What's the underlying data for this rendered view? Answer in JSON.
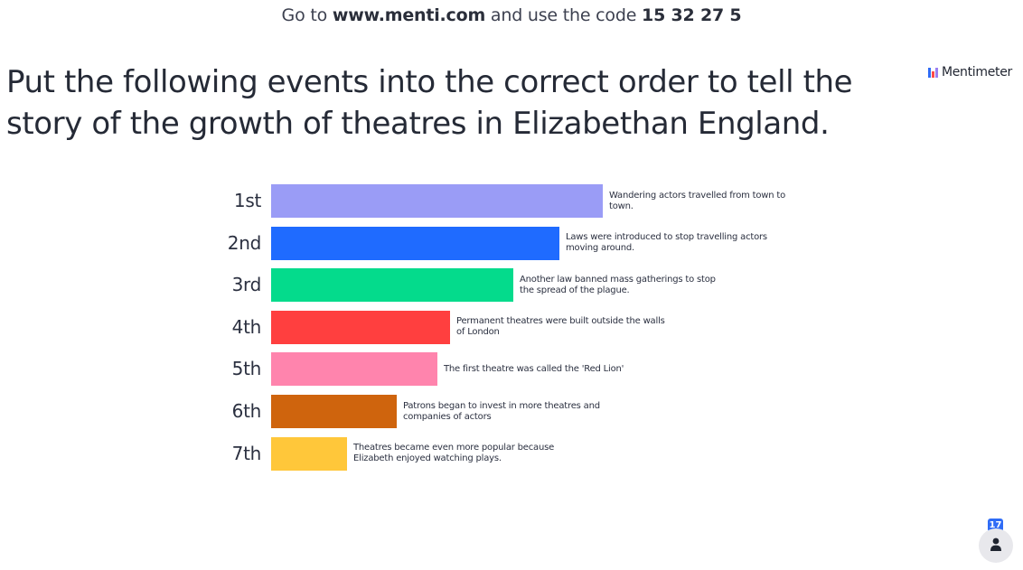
{
  "join": {
    "prefix": "Go to",
    "url": "www.menti.com",
    "middle": "and use the code",
    "code": "15 32 27 5"
  },
  "brand": {
    "name": "Mentimeter",
    "colors": [
      "#2f6cf6",
      "#ff4a4a",
      "#9b7ff2"
    ]
  },
  "question": {
    "title": "Put the following events into the correct order to tell the story of the growth of theatres in Elizabethan England."
  },
  "chart_data": {
    "type": "bar",
    "orientation": "horizontal",
    "categories": [
      "1st",
      "2nd",
      "3rd",
      "4th",
      "5th",
      "6th",
      "7th"
    ],
    "items": [
      {
        "rank": "1st",
        "label": "Wandering actors travelled from town to town.",
        "value": 100,
        "color": "#9a9cf6"
      },
      {
        "rank": "2nd",
        "label": "Laws were introduced to stop travelling actors moving around.",
        "value": 87,
        "color": "#1f6bff"
      },
      {
        "rank": "3rd",
        "label": "Another law banned mass gatherings to stop the spread of the plague.",
        "value": 73,
        "color": "#04db8c"
      },
      {
        "rank": "4th",
        "label": "Permanent theatres were built outside the walls of London",
        "value": 54,
        "color": "#ff3f3f"
      },
      {
        "rank": "5th",
        "label": "The first theatre was called the 'Red Lion'",
        "value": 50,
        "color": "#ff84ad"
      },
      {
        "rank": "6th",
        "label": "Patrons began to invest in more theatres and companies of actors",
        "value": 38,
        "color": "#cf640d"
      },
      {
        "rank": "7th",
        "label": "Theatres became even more popular because Elizabeth enjoyed watching plays.",
        "value": 23,
        "color": "#ffc73a"
      }
    ],
    "title": "",
    "xlabel": "",
    "ylabel": "",
    "grid": false,
    "legend": "none"
  },
  "footer": {
    "response_count": "17",
    "participants_icon": "person-icon"
  }
}
